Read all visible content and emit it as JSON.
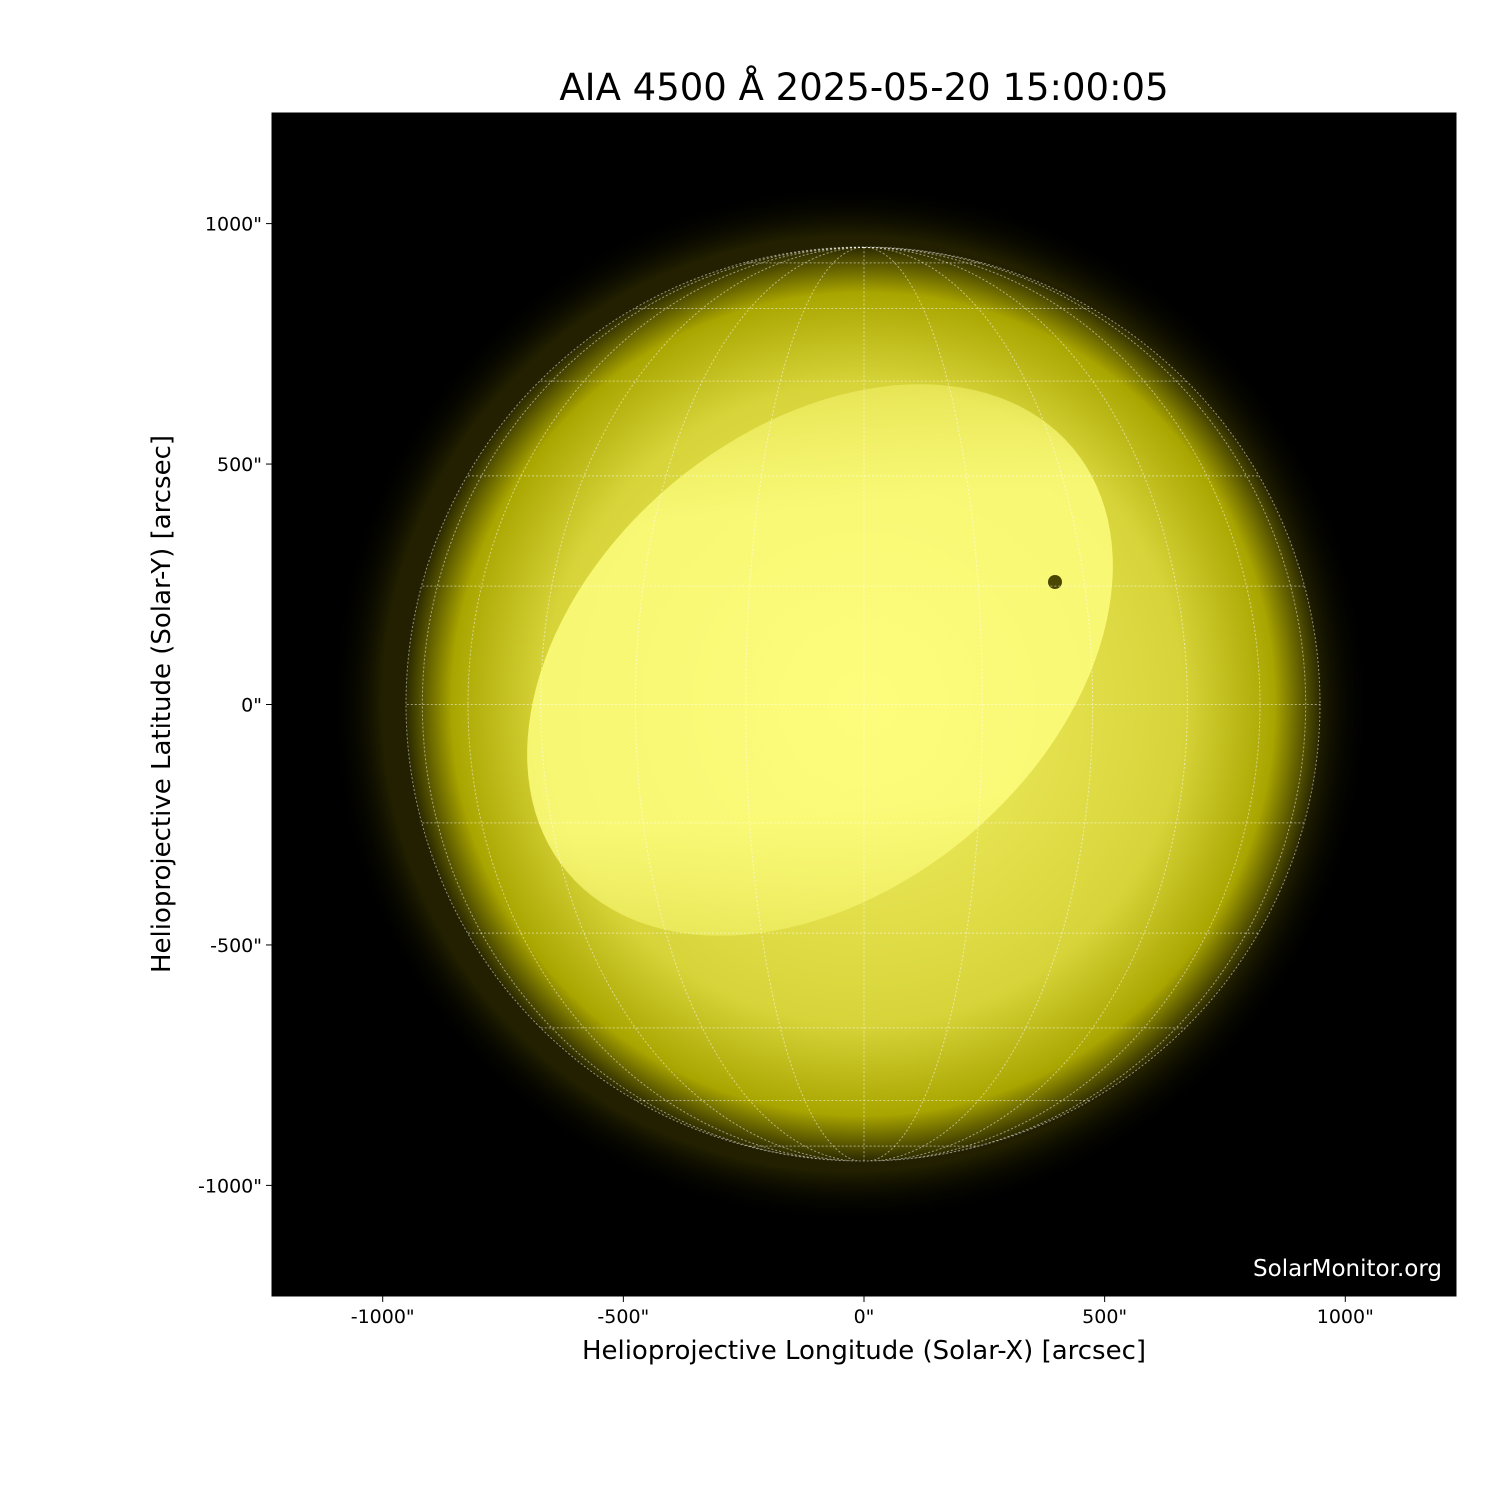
{
  "chart_data": {
    "type": "image",
    "title": "AIA 4500 Å 2025-05-20 15:00:05",
    "xlabel": "Helioprojective Longitude (Solar-X) [arcsec]",
    "ylabel": "Helioprojective Latitude (Solar-Y) [arcsec]",
    "xlim": [
      -1230,
      1230
    ],
    "ylim": [
      -1230,
      1230
    ],
    "xticks": [
      -1000,
      -500,
      0,
      500,
      1000
    ],
    "xtick_labels": [
      "-1000\"",
      "-500\"",
      "0\"",
      "500\"",
      "1000\""
    ],
    "yticks": [
      1000,
      500,
      0,
      -500,
      -1000
    ],
    "ytick_labels": [
      "1000\"",
      "500\"",
      "0\"",
      "-500\"",
      "-1000\""
    ],
    "solar_radius_arcsec": 950,
    "heliographic_grid_spacing_deg": 15,
    "grid": true,
    "colormap": "yellow (sdoaia4500)",
    "colors": {
      "background": "#000000",
      "disk_bright": "#ffff80",
      "disk_mid": "#c8c400",
      "limb": "#3a3800",
      "grid": "#ffffff"
    },
    "features": [
      {
        "type": "sunspot",
        "x": 400,
        "y": 255
      }
    ]
  },
  "credit": "SolarMonitor.org"
}
